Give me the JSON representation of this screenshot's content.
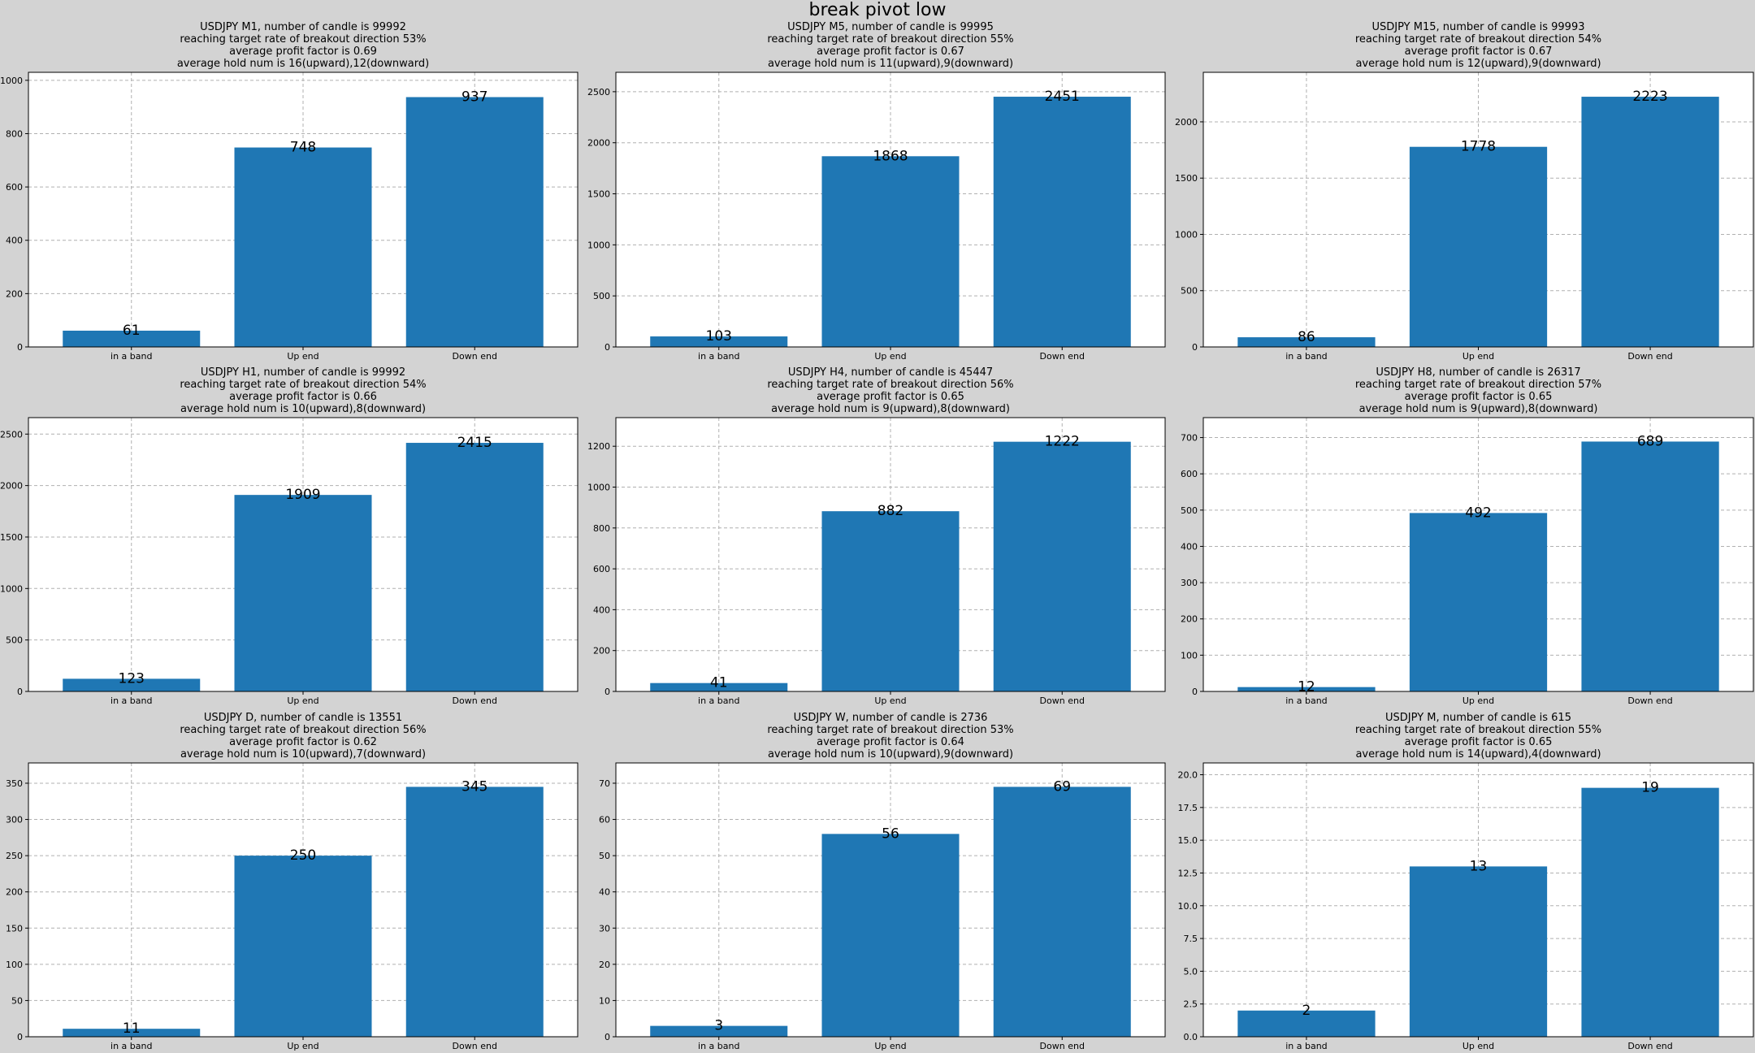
{
  "figure_title": "break pivot low",
  "chart_data": [
    {
      "type": "bar",
      "title_lines": [
        "USDJPY M1,  number of candle is 99992",
        "reaching target rate of breakout direction 53%",
        "average profit factor is 0.69",
        "average hold num is 16(upward),12(downward)"
      ],
      "categories": [
        "in a band",
        "Up end",
        "Down end"
      ],
      "values": [
        61,
        748,
        937
      ],
      "ylim": [
        0,
        1030
      ],
      "yticks": [
        0,
        200,
        400,
        600,
        800,
        1000
      ],
      "ytick_labels": [
        "0",
        "200",
        "400",
        "600",
        "800",
        "1000"
      ],
      "grid": true
    },
    {
      "type": "bar",
      "title_lines": [
        "USDJPY M5,  number of candle is 99995",
        "reaching target rate of breakout direction 55%",
        "average profit factor is 0.67",
        "average hold num is 11(upward),9(downward)"
      ],
      "categories": [
        "in a band",
        "Up end",
        "Down end"
      ],
      "values": [
        103,
        1868,
        2451
      ],
      "ylim": [
        0,
        2690
      ],
      "yticks": [
        0,
        500,
        1000,
        1500,
        2000,
        2500
      ],
      "ytick_labels": [
        "0",
        "500",
        "1000",
        "1500",
        "2000",
        "2500"
      ],
      "grid": true
    },
    {
      "type": "bar",
      "title_lines": [
        "USDJPY M15,  number of candle is 99993",
        "reaching target rate of breakout direction 54%",
        "average profit factor is 0.67",
        "average hold num is 12(upward),9(downward)"
      ],
      "categories": [
        "in a band",
        "Up end",
        "Down end"
      ],
      "values": [
        86,
        1778,
        2223
      ],
      "ylim": [
        0,
        2440
      ],
      "yticks": [
        0,
        500,
        1000,
        1500,
        2000
      ],
      "ytick_labels": [
        "0",
        "500",
        "1000",
        "1500",
        "2000"
      ],
      "grid": true
    },
    {
      "type": "bar",
      "title_lines": [
        "USDJPY H1,  number of candle is 99992",
        "reaching target rate of breakout direction 54%",
        "average profit factor is 0.66",
        "average hold num is 10(upward),8(downward)"
      ],
      "categories": [
        "in a band",
        "Up end",
        "Down end"
      ],
      "values": [
        123,
        1909,
        2415
      ],
      "ylim": [
        0,
        2660
      ],
      "yticks": [
        0,
        500,
        1000,
        1500,
        2000,
        2500
      ],
      "ytick_labels": [
        "0",
        "500",
        "1000",
        "1500",
        "2000",
        "2500"
      ],
      "grid": true
    },
    {
      "type": "bar",
      "title_lines": [
        "USDJPY H4,  number of candle is 45447",
        "reaching target rate of breakout direction 56%",
        "average profit factor is 0.65",
        "average hold num is 9(upward),8(downward)"
      ],
      "categories": [
        "in a band",
        "Up end",
        "Down end"
      ],
      "values": [
        41,
        882,
        1222
      ],
      "ylim": [
        0,
        1340
      ],
      "yticks": [
        0,
        200,
        400,
        600,
        800,
        1000,
        1200
      ],
      "ytick_labels": [
        "0",
        "200",
        "400",
        "600",
        "800",
        "1000",
        "1200"
      ],
      "grid": true
    },
    {
      "type": "bar",
      "title_lines": [
        "USDJPY H8,  number of candle is 26317",
        "reaching target rate of breakout direction 57%",
        "average profit factor is 0.65",
        "average hold num is 9(upward),8(downward)"
      ],
      "categories": [
        "in a band",
        "Up end",
        "Down end"
      ],
      "values": [
        12,
        492,
        689
      ],
      "ylim": [
        0,
        755
      ],
      "yticks": [
        0,
        100,
        200,
        300,
        400,
        500,
        600,
        700
      ],
      "ytick_labels": [
        "0",
        "100",
        "200",
        "300",
        "400",
        "500",
        "600",
        "700"
      ],
      "grid": true
    },
    {
      "type": "bar",
      "title_lines": [
        "USDJPY D,  number of candle is 13551",
        "reaching target rate of breakout direction 56%",
        "average profit factor is 0.62",
        "average hold num is 10(upward),7(downward)"
      ],
      "categories": [
        "in a band",
        "Up end",
        "Down end"
      ],
      "values": [
        11,
        250,
        345
      ],
      "ylim": [
        0,
        378
      ],
      "yticks": [
        0,
        50,
        100,
        150,
        200,
        250,
        300,
        350
      ],
      "ytick_labels": [
        "0",
        "50",
        "100",
        "150",
        "200",
        "250",
        "300",
        "350"
      ],
      "grid": true
    },
    {
      "type": "bar",
      "title_lines": [
        "USDJPY W,  number of candle is 2736",
        "reaching target rate of breakout direction 53%",
        "average profit factor is 0.64",
        "average hold num is 10(upward),9(downward)"
      ],
      "categories": [
        "in a band",
        "Up end",
        "Down end"
      ],
      "values": [
        3,
        56,
        69
      ],
      "ylim": [
        0,
        75.6
      ],
      "yticks": [
        0,
        10,
        20,
        30,
        40,
        50,
        60,
        70
      ],
      "ytick_labels": [
        "0",
        "10",
        "20",
        "30",
        "40",
        "50",
        "60",
        "70"
      ],
      "grid": true
    },
    {
      "type": "bar",
      "title_lines": [
        "USDJPY M,  number of candle is 615",
        "reaching target rate of breakout direction 55%",
        "average profit factor is 0.65",
        "average hold num is 14(upward),4(downward)"
      ],
      "categories": [
        "in a band",
        "Up end",
        "Down end"
      ],
      "values": [
        2,
        13,
        19
      ],
      "ylim": [
        0,
        20.9
      ],
      "yticks": [
        0,
        2.5,
        5,
        7.5,
        10,
        12.5,
        15,
        17.5,
        20
      ],
      "ytick_labels": [
        "0.0",
        "2.5",
        "5.0",
        "7.5",
        "10.0",
        "12.5",
        "15.0",
        "17.5",
        "20.0"
      ],
      "grid": true
    }
  ]
}
